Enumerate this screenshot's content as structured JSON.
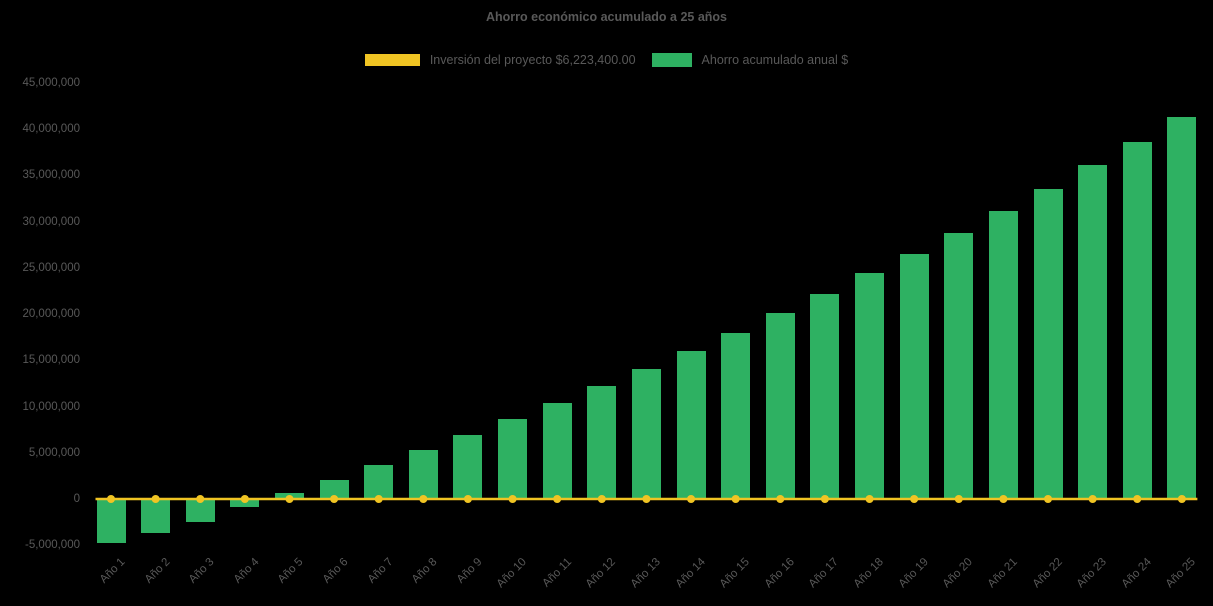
{
  "canvas": {
    "background": "#000000",
    "text_color": "#595959"
  },
  "chart_data": {
    "type": "bar",
    "title": "Ahorro económico acumulado a 25 años",
    "legend_position": "top",
    "grid": false,
    "xlabel": "",
    "ylabel": "",
    "ylim": [
      -5000000,
      45000000
    ],
    "y_tick_step": 5000000,
    "categories": [
      "Año 1",
      "Año 2",
      "Año 3",
      "Año 4",
      "Año 5",
      "Año 6",
      "Año 7",
      "Año 8",
      "Año 9",
      "Año 10",
      "Año 11",
      "Año 12",
      "Año 13",
      "Año 14",
      "Año 15",
      "Año 16",
      "Año 17",
      "Año 18",
      "Año 19",
      "Año 20",
      "Año 21",
      "Año 22",
      "Año 23",
      "Año 24",
      "Año 25"
    ],
    "series": [
      {
        "name": "Inversión del proyecto $6,223,400.00",
        "type": "line",
        "marker": "circle",
        "color": "#F0C423",
        "values": [
          0,
          0,
          0,
          0,
          0,
          0,
          0,
          0,
          0,
          0,
          0,
          0,
          0,
          0,
          0,
          0,
          0,
          0,
          0,
          0,
          0,
          0,
          0,
          0,
          0
        ]
      },
      {
        "name": "Ahorro acumulado anual $",
        "type": "bar",
        "color": "#2EB162",
        "values": [
          -4800000,
          -3700000,
          -2500000,
          -900000,
          600000,
          2100000,
          3700000,
          5300000,
          6900000,
          8600000,
          10400000,
          12200000,
          14100000,
          16000000,
          18000000,
          20100000,
          22200000,
          24400000,
          26500000,
          28800000,
          31100000,
          33500000,
          36100000,
          38600000,
          41300000
        ]
      }
    ],
    "y_ticks": [
      {
        "value": -5000000,
        "label": "-5,000,000"
      },
      {
        "value": 0,
        "label": "0"
      },
      {
        "value": 5000000,
        "label": "5,000,000"
      },
      {
        "value": 10000000,
        "label": "10,000,000"
      },
      {
        "value": 15000000,
        "label": "15,000,000"
      },
      {
        "value": 20000000,
        "label": "20,000,000"
      },
      {
        "value": 25000000,
        "label": "25,000,000"
      },
      {
        "value": 30000000,
        "label": "30,000,000"
      },
      {
        "value": 35000000,
        "label": "35,000,000"
      },
      {
        "value": 40000000,
        "label": "40,000,000"
      },
      {
        "value": 45000000,
        "label": "45,000,000"
      }
    ]
  }
}
